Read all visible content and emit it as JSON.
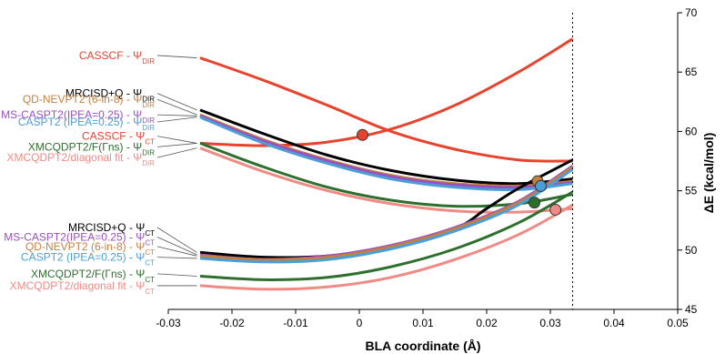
{
  "chart_data": {
    "type": "line",
    "xlabel": "BLA coordinate (Å)",
    "ylabel": "ΔE (kcal/mol)",
    "xlim": [
      -0.03,
      0.05
    ],
    "ylim": [
      45,
      70
    ],
    "xticks": [
      "-0.03",
      "-0.02",
      "-0.01",
      "0",
      "0.01",
      "0.02",
      "0.03",
      "0.04",
      "0.05"
    ],
    "yticks": [
      "45",
      "50",
      "55",
      "60",
      "65",
      "70"
    ],
    "vline_x": 0.0335,
    "grid": false,
    "colors": {
      "casscf": "#e8432e",
      "mrcisd": "#000000",
      "qdnevpt2": "#c87f3d",
      "mscaspt2": "#9b4fc1",
      "caspt2": "#4a9fd6",
      "xmcqdpt2": "#2e6f2e",
      "xmcqdpt2_diag": "#f08a85"
    },
    "series": [
      {
        "name": "CASSCF - Ψ",
        "state": "DIR",
        "key": "casscf",
        "x": [
          -0.025,
          -0.015,
          -0.005,
          0.005,
          0.015,
          0.025,
          0.0335
        ],
        "y": [
          66.2,
          64.3,
          62.2,
          60.0,
          58.5,
          57.6,
          57.5
        ]
      },
      {
        "name": "CASSCF - Ψ",
        "state": "CT",
        "key": "casscf",
        "x": [
          -0.025,
          -0.015,
          -0.005,
          0.005,
          0.015,
          0.025,
          0.0335
        ],
        "y": [
          59.0,
          58.8,
          59.1,
          60.2,
          62.2,
          65.0,
          67.8
        ]
      },
      {
        "name": "MRCISD+Q - Ψ",
        "state": "DIR",
        "key": "mrcisd",
        "x": [
          -0.025,
          -0.015,
          -0.005,
          0.005,
          0.015,
          0.025,
          0.0335
        ],
        "y": [
          61.8,
          59.8,
          58.0,
          56.7,
          55.9,
          55.6,
          56.0
        ]
      },
      {
        "name": "QD-NEVPT2 (6-in-8) - Ψ",
        "state": "DIR",
        "key": "qdnevpt2",
        "x": [
          -0.025,
          -0.015,
          -0.005,
          0.005,
          0.015,
          0.025,
          0.0335
        ],
        "y": [
          61.4,
          59.3,
          57.6,
          56.3,
          55.6,
          55.4,
          55.8
        ]
      },
      {
        "name": "MS-CASPT2(IPEA=0.25) - Ψ",
        "state": "DIR",
        "key": "mscaspt2",
        "x": [
          -0.025,
          -0.015,
          -0.005,
          0.005,
          0.015,
          0.025,
          0.0335
        ],
        "y": [
          61.3,
          59.2,
          57.5,
          56.2,
          55.5,
          55.3,
          55.7
        ]
      },
      {
        "name": "CASPT2 (IPEA=0.25) - Ψ",
        "state": "DIR",
        "key": "caspt2",
        "x": [
          -0.025,
          -0.015,
          -0.005,
          0.005,
          0.015,
          0.025,
          0.0335
        ],
        "y": [
          61.2,
          59.0,
          57.3,
          56.0,
          55.3,
          55.1,
          55.6
        ]
      },
      {
        "name": "XMCQDPT2/F(Γns) - Ψ",
        "state": "DIR",
        "key": "xmcqdpt2",
        "x": [
          -0.025,
          -0.015,
          -0.005,
          0.005,
          0.015,
          0.025,
          0.0335
        ],
        "y": [
          59.0,
          57.0,
          55.3,
          54.2,
          53.7,
          53.9,
          54.7
        ]
      },
      {
        "name": "XMCQDPT2/diagonal fit - Ψ",
        "state": "DIR",
        "key": "xmcqdpt2_diag",
        "x": [
          -0.025,
          -0.015,
          -0.005,
          0.005,
          0.015,
          0.025,
          0.0335
        ],
        "y": [
          58.6,
          56.6,
          55.0,
          53.9,
          53.3,
          53.2,
          53.5
        ]
      },
      {
        "name": "MRCISD+Q - Ψ",
        "state": "CT",
        "key": "mrcisd",
        "x": [
          -0.025,
          -0.015,
          -0.005,
          0.005,
          0.015,
          0.02,
          0.025,
          0.0335
        ],
        "y": [
          49.8,
          49.4,
          49.5,
          50.3,
          51.8,
          53.5,
          55.2,
          57.6
        ]
      },
      {
        "name": "MS-CASPT2(IPEA=0.25) - Ψ",
        "state": "CT",
        "key": "mscaspt2",
        "x": [
          -0.025,
          -0.015,
          -0.005,
          0.005,
          0.015,
          0.025,
          0.0335
        ],
        "y": [
          49.6,
          49.2,
          49.5,
          50.4,
          51.9,
          54.1,
          57.1
        ]
      },
      {
        "name": "QD-NEVPT2 (6-in-8) - Ψ",
        "state": "CT",
        "key": "qdnevpt2",
        "x": [
          -0.025,
          -0.015,
          -0.005,
          0.005,
          0.015,
          0.025,
          0.0335
        ],
        "y": [
          49.5,
          49.2,
          49.4,
          50.3,
          51.8,
          54.0,
          57.0
        ]
      },
      {
        "name": "CASPT2 (IPEA=0.25) - Ψ",
        "state": "CT",
        "key": "caspt2",
        "x": [
          -0.025,
          -0.015,
          -0.005,
          0.005,
          0.015,
          0.025,
          0.0335
        ],
        "y": [
          49.3,
          49.0,
          49.2,
          50.1,
          51.6,
          53.8,
          56.8
        ]
      },
      {
        "name": "XMCQDPT2/F(Γns) - Ψ",
        "state": "CT",
        "key": "xmcqdpt2",
        "x": [
          -0.025,
          -0.015,
          -0.005,
          0.005,
          0.015,
          0.025,
          0.0335
        ],
        "y": [
          47.8,
          47.5,
          47.7,
          48.6,
          50.1,
          52.3,
          54.9
        ]
      },
      {
        "name": "XMCQDPT2/diagonal fit - Ψ",
        "state": "CT",
        "key": "xmcqdpt2_diag",
        "x": [
          -0.025,
          -0.015,
          -0.005,
          0.005,
          0.015,
          0.025,
          0.0335
        ],
        "y": [
          47.0,
          46.7,
          46.9,
          47.7,
          49.2,
          51.3,
          53.8
        ]
      }
    ],
    "crossing_points": [
      {
        "key": "casscf",
        "x": 0.0005,
        "y": 59.7
      },
      {
        "key": "qdnevpt2",
        "x": 0.028,
        "y": 55.8
      },
      {
        "key": "caspt2",
        "x": 0.0285,
        "y": 55.4
      },
      {
        "key": "xmcqdpt2",
        "x": 0.0275,
        "y": 54.0
      },
      {
        "key": "xmcqdpt2_diag",
        "x": 0.0308,
        "y": 53.4
      }
    ],
    "labels_dir": [
      {
        "key": "casscf",
        "text": "CASSCF - Ψ",
        "sub": "DIR",
        "y": 66.4,
        "ly": 66.2
      },
      {
        "key": "mrcisd",
        "text": "MRCISD+Q - Ψ",
        "sub": "DIR",
        "y": 63.2,
        "ly": 61.8
      },
      {
        "key": "qdnevpt2",
        "text": "QD-NEVPT2 (6-in-8) - Ψ",
        "sub": "DIR",
        "y": 62.7,
        "ly": 61.4
      },
      {
        "key": "mscaspt2",
        "text": "MS-CASPT2(IPEA=0.25) - Ψ",
        "sub": "DIR",
        "y": 61.4,
        "ly": 61.3
      },
      {
        "key": "caspt2",
        "text": "CASPT2 (IPEA=0.25) - Ψ",
        "sub": "DIR",
        "y": 60.8,
        "ly": 61.2
      },
      {
        "key": "casscf",
        "text": "CASSCF - Ψ",
        "sub": "CT",
        "y": 59.6,
        "ly": 59.0
      },
      {
        "key": "xmcqdpt2",
        "text": "XMCQDPT2/F(Γns) - Ψ",
        "sub": "DIR",
        "y": 58.7,
        "ly": 59.0
      },
      {
        "key": "xmcqdpt2_diag",
        "text": "XMCQDPT2/diagonal fit - Ψ",
        "sub": "DIR",
        "y": 57.8,
        "ly": 58.6
      }
    ],
    "labels_ct": [
      {
        "key": "mrcisd",
        "text": "MRCISD+Q - Ψ",
        "sub": "CT",
        "y": 51.9,
        "ly": 49.8
      },
      {
        "key": "mscaspt2",
        "text": "MS-CASPT2(IPEA=0.25) - Ψ",
        "sub": "CT",
        "y": 51.1,
        "ly": 49.6
      },
      {
        "key": "qdnevpt2",
        "text": "QD-NEVPT2 (6-in-8) - Ψ",
        "sub": "CT",
        "y": 50.3,
        "ly": 49.5
      },
      {
        "key": "caspt2",
        "text": "CASPT2 (IPEA=0.25) - Ψ",
        "sub": "CT",
        "y": 49.4,
        "ly": 49.3
      },
      {
        "key": "xmcqdpt2",
        "text": "XMCQDPT2/F(Γns) - Ψ",
        "sub": "CT",
        "y": 48.0,
        "ly": 47.8
      },
      {
        "key": "xmcqdpt2_diag",
        "text": "XMCQDPT2/diagonal fit - Ψ",
        "sub": "CT",
        "y": 47.0,
        "ly": 47.0
      }
    ]
  }
}
